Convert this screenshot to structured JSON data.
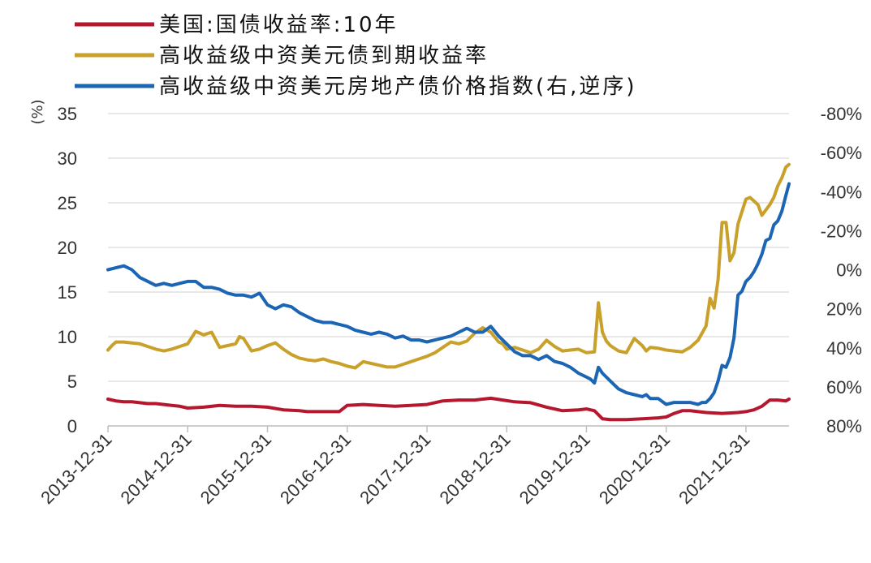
{
  "chart_data": {
    "type": "line",
    "unit_label_left": "(%)",
    "x_tick_labels": [
      "2013-12-31",
      "2014-12-31",
      "2015-12-31",
      "2016-12-31",
      "2017-12-31",
      "2018-12-31",
      "2019-12-31",
      "2020-12-31",
      "2021-12-31"
    ],
    "x_range": [
      2014.0,
      2022.54
    ],
    "y_left": {
      "ticks": [
        "0",
        "5",
        "10",
        "15",
        "20",
        "25",
        "30",
        "35"
      ],
      "min": 0,
      "max": 35
    },
    "y_right": {
      "ticks": [
        "80%",
        "60%",
        "40%",
        "20%",
        "0%",
        "-20%",
        "-40%",
        "-60%",
        "-80%"
      ],
      "min": -80,
      "max": 80,
      "inverted": true
    },
    "grid": "horizontal",
    "legend_position": "top-left",
    "series": [
      {
        "name": "美国:国债收益率:10年",
        "color": "#b5172f",
        "axis": "left",
        "x": [
          2014.0,
          2014.1,
          2014.2,
          2014.3,
          2014.4,
          2014.5,
          2014.6,
          2014.7,
          2014.8,
          2014.9,
          2015.0,
          2015.2,
          2015.4,
          2015.6,
          2015.8,
          2016.0,
          2016.2,
          2016.4,
          2016.5,
          2016.7,
          2016.9,
          2017.0,
          2017.2,
          2017.4,
          2017.6,
          2017.8,
          2018.0,
          2018.2,
          2018.4,
          2018.6,
          2018.8,
          2018.95,
          2019.1,
          2019.3,
          2019.5,
          2019.7,
          2019.9,
          2020.0,
          2020.1,
          2020.2,
          2020.3,
          2020.5,
          2020.7,
          2020.9,
          2021.0,
          2021.1,
          2021.2,
          2021.3,
          2021.5,
          2021.7,
          2021.9,
          2022.0,
          2022.1,
          2022.2,
          2022.3,
          2022.4,
          2022.5,
          2022.54
        ],
        "y": [
          3.0,
          2.8,
          2.7,
          2.7,
          2.6,
          2.5,
          2.5,
          2.4,
          2.3,
          2.2,
          2.0,
          2.1,
          2.3,
          2.2,
          2.2,
          2.1,
          1.8,
          1.7,
          1.6,
          1.6,
          1.6,
          2.3,
          2.4,
          2.3,
          2.2,
          2.3,
          2.4,
          2.8,
          2.9,
          2.9,
          3.1,
          2.9,
          2.7,
          2.6,
          2.1,
          1.7,
          1.8,
          1.9,
          1.7,
          0.8,
          0.7,
          0.7,
          0.8,
          0.9,
          1.0,
          1.4,
          1.7,
          1.7,
          1.5,
          1.4,
          1.5,
          1.6,
          1.8,
          2.2,
          2.9,
          2.9,
          2.8,
          3.0
        ]
      },
      {
        "name": "高收益级中资美元债到期收益率",
        "color": "#c8a02a",
        "axis": "left",
        "x": [
          2014.0,
          2014.05,
          2014.1,
          2014.2,
          2014.3,
          2014.4,
          2014.5,
          2014.6,
          2014.7,
          2014.8,
          2014.9,
          2015.0,
          2015.1,
          2015.2,
          2015.3,
          2015.4,
          2015.5,
          2015.6,
          2015.65,
          2015.7,
          2015.8,
          2015.9,
          2016.0,
          2016.1,
          2016.2,
          2016.3,
          2016.4,
          2016.5,
          2016.6,
          2016.7,
          2016.8,
          2016.9,
          2017.0,
          2017.1,
          2017.2,
          2017.3,
          2017.4,
          2017.5,
          2017.6,
          2017.7,
          2017.8,
          2017.9,
          2018.0,
          2018.1,
          2018.2,
          2018.3,
          2018.4,
          2018.5,
          2018.6,
          2018.7,
          2018.8,
          2018.9,
          2018.95,
          2019.0,
          2019.1,
          2019.2,
          2019.3,
          2019.4,
          2019.5,
          2019.6,
          2019.7,
          2019.8,
          2019.9,
          2020.0,
          2020.1,
          2020.15,
          2020.2,
          2020.25,
          2020.3,
          2020.4,
          2020.5,
          2020.6,
          2020.7,
          2020.75,
          2020.8,
          2020.9,
          2021.0,
          2021.1,
          2021.2,
          2021.3,
          2021.4,
          2021.5,
          2021.55,
          2021.6,
          2021.65,
          2021.7,
          2021.75,
          2021.8,
          2021.85,
          2021.9,
          2022.0,
          2022.05,
          2022.1,
          2022.15,
          2022.2,
          2022.3,
          2022.35,
          2022.4,
          2022.45,
          2022.5,
          2022.54
        ],
        "y": [
          8.5,
          9.0,
          9.4,
          9.4,
          9.3,
          9.2,
          8.9,
          8.6,
          8.4,
          8.6,
          8.9,
          9.2,
          10.6,
          10.2,
          10.5,
          8.8,
          9.0,
          9.2,
          10.0,
          9.8,
          8.4,
          8.6,
          9.0,
          9.3,
          8.6,
          8.0,
          7.6,
          7.4,
          7.3,
          7.5,
          7.2,
          7.0,
          6.7,
          6.5,
          7.2,
          7.0,
          6.8,
          6.6,
          6.6,
          6.9,
          7.2,
          7.5,
          7.8,
          8.2,
          8.8,
          9.4,
          9.2,
          9.5,
          10.4,
          11.0,
          10.5,
          9.4,
          9.2,
          8.6,
          8.8,
          8.5,
          8.2,
          8.6,
          9.6,
          8.9,
          8.4,
          8.5,
          8.6,
          8.2,
          8.3,
          13.8,
          10.5,
          9.5,
          9.0,
          8.4,
          8.2,
          9.8,
          9.0,
          8.4,
          8.8,
          8.7,
          8.5,
          8.4,
          8.3,
          8.8,
          9.6,
          11.2,
          14.3,
          13.2,
          16.4,
          22.8,
          22.8,
          18.5,
          19.4,
          22.6,
          25.4,
          25.6,
          25.2,
          24.8,
          23.6,
          24.8,
          25.6,
          26.9,
          27.8,
          29.0,
          29.3
        ]
      },
      {
        "name": "高收益级中资美元房地产债价格指数(右,逆序)",
        "color": "#1c64b4",
        "axis": "right",
        "x": [
          2014.0,
          2014.1,
          2014.2,
          2014.3,
          2014.4,
          2014.5,
          2014.6,
          2014.7,
          2014.8,
          2014.9,
          2015.0,
          2015.1,
          2015.2,
          2015.3,
          2015.4,
          2015.5,
          2015.6,
          2015.7,
          2015.8,
          2015.9,
          2016.0,
          2016.1,
          2016.2,
          2016.3,
          2016.4,
          2016.5,
          2016.6,
          2016.7,
          2016.8,
          2016.9,
          2017.0,
          2017.1,
          2017.2,
          2017.3,
          2017.4,
          2017.5,
          2017.6,
          2017.7,
          2017.8,
          2017.9,
          2018.0,
          2018.1,
          2018.2,
          2018.3,
          2018.4,
          2018.5,
          2018.6,
          2018.7,
          2018.8,
          2018.9,
          2019.0,
          2019.1,
          2019.2,
          2019.3,
          2019.4,
          2019.5,
          2019.6,
          2019.7,
          2019.8,
          2019.9,
          2020.0,
          2020.05,
          2020.1,
          2020.15,
          2020.2,
          2020.3,
          2020.4,
          2020.5,
          2020.6,
          2020.7,
          2020.75,
          2020.8,
          2020.9,
          2021.0,
          2021.1,
          2021.2,
          2021.3,
          2021.4,
          2021.45,
          2021.5,
          2021.55,
          2021.6,
          2021.65,
          2021.7,
          2021.75,
          2021.8,
          2021.85,
          2021.9,
          2021.95,
          2022.0,
          2022.05,
          2022.1,
          2022.15,
          2022.2,
          2022.25,
          2022.3,
          2022.35,
          2022.4,
          2022.45,
          2022.5,
          2022.54
        ],
        "y": [
          0,
          -1,
          -2,
          0,
          4,
          6,
          8,
          7,
          8,
          7,
          6,
          6,
          9,
          9,
          10,
          12,
          13,
          13,
          14,
          12,
          18,
          20,
          18,
          19,
          22,
          24,
          26,
          27,
          27,
          28,
          29,
          31,
          32,
          33,
          32,
          33,
          35,
          34,
          36,
          36,
          37,
          36,
          35,
          34,
          32,
          30,
          32,
          32,
          29,
          34,
          38,
          42,
          44,
          44,
          46,
          44,
          47,
          48,
          50,
          53,
          55,
          56,
          58,
          50,
          53,
          57,
          61,
          63,
          64,
          65,
          64,
          66,
          66,
          69,
          68,
          68,
          68,
          69,
          68,
          68,
          66,
          63,
          57,
          49,
          50,
          45,
          35,
          13,
          11,
          6,
          4,
          1,
          -3,
          -8,
          -15,
          -16,
          -23,
          -25,
          -30,
          -38,
          -44
        ]
      }
    ]
  }
}
